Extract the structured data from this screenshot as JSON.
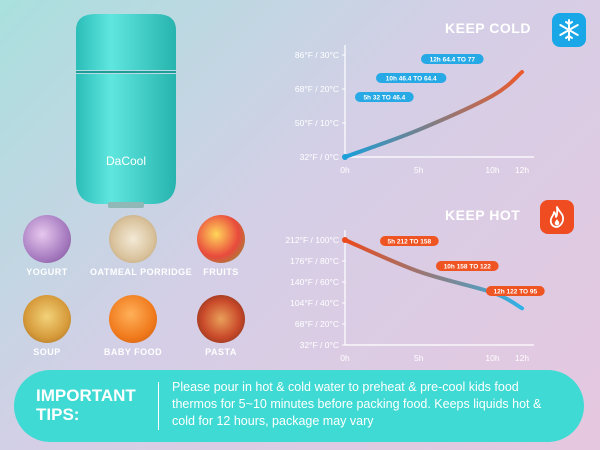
{
  "product": {
    "brand": "DaCool",
    "color": "#3fd6d0"
  },
  "foods": [
    {
      "label": "YOGURT",
      "color": "#c9a7d2"
    },
    {
      "label": "OATMEAL PORRIDGE",
      "color": "#e8d6b4"
    },
    {
      "label": "FRUITS",
      "color": "#e84a3c"
    },
    {
      "label": "SOUP",
      "color": "#e0b24d"
    },
    {
      "label": "BABY FOOD",
      "color": "#f08a2c"
    },
    {
      "label": "PASTA",
      "color": "#c94a2a"
    }
  ],
  "chart_data": [
    {
      "type": "line",
      "title": "KEEP COLD",
      "icon": "snowflake-icon",
      "x": [
        0,
        5,
        10,
        12
      ],
      "xticks": [
        "0h",
        "5h",
        "10h",
        "12h"
      ],
      "yticks": [
        {
          "value": 32,
          "label": "32°F / 0°C"
        },
        {
          "value": 50,
          "label": "50°F / 10°C"
        },
        {
          "value": 68,
          "label": "68°F / 20°C"
        },
        {
          "value": 86,
          "label": "86°F / 30°C"
        }
      ],
      "ylim": [
        32,
        86
      ],
      "series": [
        {
          "values": [
            32,
            46.4,
            64.4,
            77
          ]
        }
      ],
      "annotations": [
        "5h 32 TO 46.4",
        "10h 46.4 TO 64.4",
        "12h 64.4 TO 77"
      ],
      "colors": {
        "start": "#1a9fd9",
        "end": "#ec5a2c",
        "label_bg": "#27a9e6"
      }
    },
    {
      "type": "line",
      "title": "KEEP HOT",
      "icon": "flame-icon",
      "x": [
        0,
        5,
        10,
        12
      ],
      "xticks": [
        "0h",
        "5h",
        "10h",
        "12h"
      ],
      "yticks": [
        {
          "value": 32,
          "label": "32°F / 0°C"
        },
        {
          "value": 68,
          "label": "68°F / 20°C"
        },
        {
          "value": 104,
          "label": "104°F / 40°C"
        },
        {
          "value": 140,
          "label": "140°F / 60°C"
        },
        {
          "value": 176,
          "label": "176°F / 80°C"
        },
        {
          "value": 212,
          "label": "212°F / 100°C"
        }
      ],
      "ylim": [
        32,
        212
      ],
      "series": [
        {
          "values": [
            212,
            158,
            122,
            95
          ]
        }
      ],
      "annotations": [
        "5h 212 TO 158",
        "10h 158 TO 122",
        "12h 122 TO 95"
      ],
      "colors": {
        "start": "#ec4a1c",
        "end": "#2fb2e8",
        "label_bg": "#ef5423"
      }
    }
  ],
  "tips": {
    "label": "IMPORTANT TIPS:",
    "text": "Please pour in hot & cold water to preheat & pre-cool kids food thermos for 5~10 minutes before packing food. Keeps liquids hot & cold for 12 hours, package may vary"
  }
}
